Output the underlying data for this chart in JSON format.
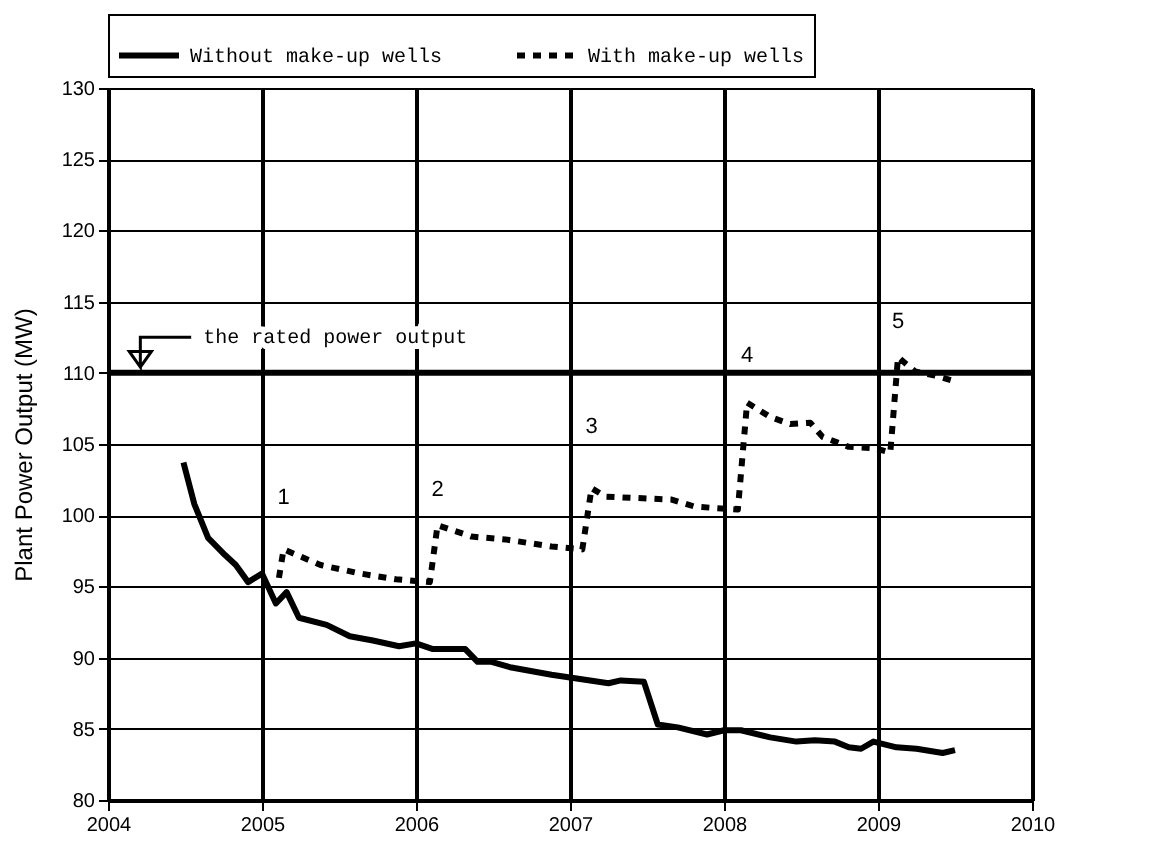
{
  "chart_data": {
    "type": "line",
    "ylabel": "Plant Power Output (MW)",
    "xlim": [
      2004,
      2010
    ],
    "xticks": [
      2004,
      2005,
      2006,
      2007,
      2008,
      2009,
      2010
    ],
    "ylim": [
      80,
      130
    ],
    "yticks": [
      80,
      85,
      90,
      95,
      100,
      105,
      110,
      115,
      120,
      125,
      130
    ],
    "grid": true,
    "legend": "top",
    "marker": "none",
    "series": [
      {
        "name": "Without make-up wells",
        "color": "#000000",
        "line_style": "solid",
        "x": [
          2004.49,
          2004.56,
          2004.65,
          2004.76,
          2004.83,
          2004.91,
          2005.0,
          2005.09,
          2005.16,
          2005.24,
          2005.42,
          2005.57,
          2005.72,
          2005.89,
          2006.0,
          2006.11,
          2006.32,
          2006.4,
          2006.49,
          2006.62,
          2006.88,
          2007.0,
          2007.25,
          2007.33,
          2007.48,
          2007.57,
          2007.7,
          2007.89,
          2008.0,
          2008.11,
          2008.3,
          2008.47,
          2008.59,
          2008.72,
          2008.81,
          2008.89,
          2008.97,
          2009.12,
          2009.25,
          2009.42,
          2009.5
        ],
        "values": [
          103.7,
          100.8,
          98.4,
          97.2,
          96.5,
          95.3,
          95.9,
          93.8,
          94.6,
          92.8,
          92.3,
          91.5,
          91.2,
          90.8,
          91.0,
          90.6,
          90.6,
          89.7,
          89.7,
          89.3,
          88.8,
          88.6,
          88.2,
          88.4,
          88.3,
          85.3,
          85.1,
          84.6,
          84.9,
          84.9,
          84.4,
          84.1,
          84.2,
          84.1,
          83.7,
          83.6,
          84.1,
          83.7,
          83.6,
          83.3,
          83.5
        ]
      },
      {
        "name": "With make-up wells",
        "color": "#000000",
        "line_style": "dashed",
        "x": [
          2005.11,
          2005.14,
          2005.38,
          2005.64,
          2005.87,
          2006.09,
          2006.14,
          2006.36,
          2006.58,
          2006.88,
          2007.08,
          2007.14,
          2007.23,
          2007.66,
          2007.81,
          2008.09,
          2008.15,
          2008.3,
          2008.43,
          2008.56,
          2008.64,
          2008.81,
          2008.98,
          2009.08,
          2009.13,
          2009.24,
          2009.37,
          2009.5
        ],
        "values": [
          95.6,
          97.6,
          96.5,
          95.9,
          95.5,
          95.3,
          99.3,
          98.5,
          98.3,
          97.8,
          97.6,
          101.9,
          101.3,
          101.1,
          100.6,
          100.4,
          107.9,
          106.9,
          106.4,
          106.5,
          105.5,
          104.8,
          104.7,
          104.4,
          111.1,
          110.1,
          109.8,
          109.4
        ]
      }
    ],
    "ref_lines": [
      {
        "axis": "y",
        "value": 110,
        "label": "the rated power output",
        "color": "#000000",
        "line_style": "solid"
      }
    ],
    "annotations": [
      {
        "text": "1",
        "x": 2005.14,
        "y": 97.6
      },
      {
        "text": "2",
        "x": 2006.14,
        "y": 99.3
      },
      {
        "text": "3",
        "x": 2007.14,
        "y": 101.9
      },
      {
        "text": "4",
        "x": 2008.15,
        "y": 107.9
      },
      {
        "text": "5",
        "x": 2009.13,
        "y": 111.1
      }
    ]
  }
}
